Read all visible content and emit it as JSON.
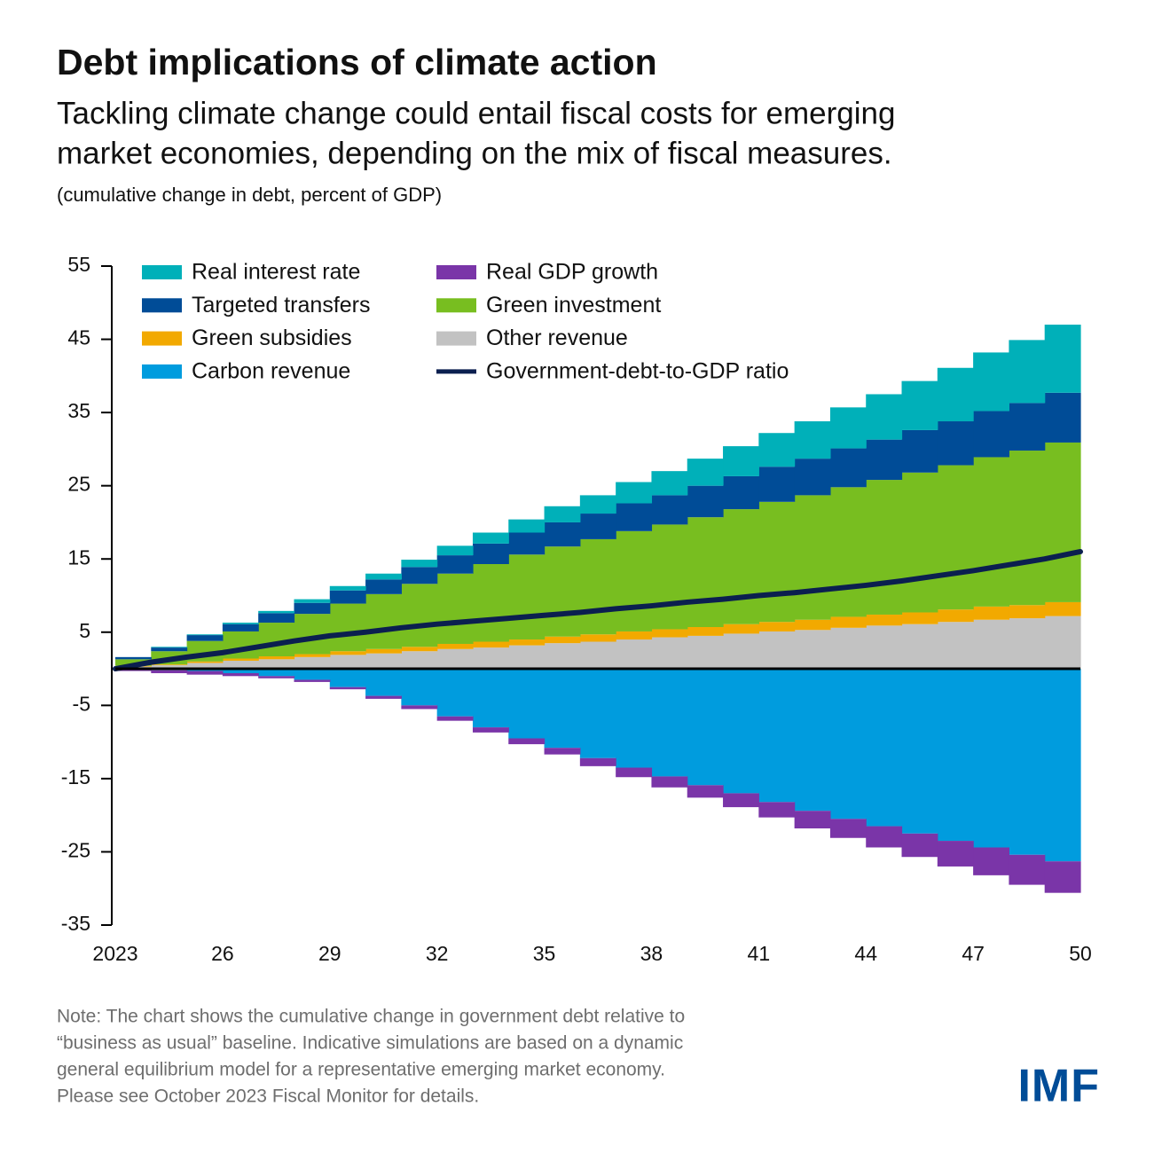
{
  "chart_data": {
    "type": "area",
    "title": "Debt implications of climate action",
    "subtitle": [
      "Tackling climate change could entail fiscal costs for emerging",
      "market economies, depending on the mix of fiscal measures."
    ],
    "unit_note": "(cumulative change in debt, percent of GDP)",
    "x": [
      2023,
      2024,
      2025,
      2026,
      2027,
      2028,
      2029,
      2030,
      2031,
      2032,
      2033,
      2034,
      2035,
      2036,
      2037,
      2038,
      2039,
      2040,
      2041,
      2042,
      2043,
      2044,
      2045,
      2046,
      2047,
      2048,
      2049,
      2050
    ],
    "xlim": [
      2023,
      2050
    ],
    "xticks": [
      2023,
      {
        "value": 2026,
        "label": "26"
      },
      {
        "value": 2029,
        "label": "29"
      },
      {
        "value": 2032,
        "label": "32"
      },
      {
        "value": 2035,
        "label": "35"
      },
      {
        "value": 2038,
        "label": "38"
      },
      {
        "value": 2041,
        "label": "41"
      },
      {
        "value": 2044,
        "label": "44"
      },
      {
        "value": 2047,
        "label": "47"
      },
      {
        "value": 2050,
        "label": "50"
      }
    ],
    "ylim": [
      -35,
      55
    ],
    "yticks": [
      55,
      45,
      35,
      25,
      15,
      5,
      -5,
      -15,
      -25,
      -35
    ],
    "series": [
      {
        "name": "Other revenue",
        "color": "#c2c2c2",
        "values": [
          0,
          0.3,
          0.5,
          0.8,
          1.1,
          1.3,
          1.6,
          1.9,
          2.1,
          2.4,
          2.7,
          2.9,
          3.2,
          3.5,
          3.7,
          4.0,
          4.3,
          4.5,
          4.8,
          5.1,
          5.3,
          5.6,
          5.9,
          6.1,
          6.4,
          6.7,
          6.9,
          7.2
        ]
      },
      {
        "name": "Green subsidies",
        "color": "#f2a900",
        "values": [
          0,
          0.1,
          0.1,
          0.2,
          0.3,
          0.4,
          0.4,
          0.5,
          0.6,
          0.6,
          0.7,
          0.8,
          0.8,
          0.9,
          1.0,
          1.1,
          1.1,
          1.2,
          1.3,
          1.3,
          1.4,
          1.5,
          1.5,
          1.6,
          1.7,
          1.8,
          1.8,
          1.9
        ]
      },
      {
        "name": "Green investment",
        "color": "#78be20",
        "values": [
          0,
          0.9,
          1.8,
          2.8,
          3.7,
          4.6,
          5.5,
          6.5,
          7.5,
          8.6,
          9.6,
          10.6,
          11.6,
          12.3,
          13.0,
          13.7,
          14.3,
          15.0,
          15.7,
          16.4,
          17.0,
          17.7,
          18.4,
          19.1,
          19.7,
          20.4,
          21.1,
          21.8
        ]
      },
      {
        "name": "Targeted transfers",
        "color": "#004c97",
        "values": [
          0,
          0.3,
          0.5,
          0.8,
          1.0,
          1.3,
          1.5,
          1.8,
          2.0,
          2.3,
          2.5,
          2.8,
          3.0,
          3.3,
          3.5,
          3.8,
          4.0,
          4.3,
          4.5,
          4.8,
          5.0,
          5.3,
          5.5,
          5.8,
          6.0,
          6.3,
          6.5,
          6.8
        ]
      },
      {
        "name": "Real interest rate",
        "color": "#00b0b9",
        "values": [
          0,
          0,
          0.1,
          0.1,
          0.2,
          0.3,
          0.5,
          0.6,
          0.8,
          1.0,
          1.3,
          1.5,
          1.8,
          2.2,
          2.5,
          2.9,
          3.3,
          3.7,
          4.1,
          4.6,
          5.1,
          5.6,
          6.2,
          6.7,
          7.3,
          8.0,
          8.6,
          9.3
        ]
      },
      {
        "name": "Carbon revenue",
        "color": "#009cde",
        "values": [
          0,
          -0.1,
          -0.2,
          -0.3,
          -0.6,
          -1.0,
          -1.5,
          -2.5,
          -3.7,
          -5.0,
          -6.5,
          -8.0,
          -9.5,
          -10.8,
          -12.2,
          -13.5,
          -14.7,
          -15.9,
          -17.0,
          -18.2,
          -19.4,
          -20.5,
          -21.5,
          -22.5,
          -23.5,
          -24.4,
          -25.4,
          -26.3
        ]
      },
      {
        "name": "Real GDP growth",
        "color": "#7a35a8",
        "values": [
          0,
          -0.2,
          -0.4,
          -0.5,
          -0.4,
          -0.3,
          -0.3,
          -0.3,
          -0.4,
          -0.5,
          -0.6,
          -0.7,
          -0.8,
          -0.9,
          -1.1,
          -1.3,
          -1.5,
          -1.7,
          -1.9,
          -2.1,
          -2.4,
          -2.6,
          -2.9,
          -3.2,
          -3.5,
          -3.8,
          -4.1,
          -4.3
        ]
      },
      {
        "name": "Government-debt-to-GDP ratio",
        "color": "#0b1f4f",
        "type": "line",
        "values": [
          0,
          0.9,
          1.6,
          2.2,
          3.0,
          3.8,
          4.5,
          5.0,
          5.6,
          6.1,
          6.5,
          6.9,
          7.3,
          7.7,
          8.2,
          8.6,
          9.1,
          9.5,
          10.0,
          10.4,
          10.9,
          11.4,
          12.0,
          12.7,
          13.4,
          14.2,
          15.0,
          16.0
        ]
      }
    ],
    "note": [
      "Note: The chart shows the cumulative change in government debt relative to",
      "“business as usual” baseline. Indicative simulations are based on a dynamic",
      "general equilibrium model for a representative emerging market economy.",
      "Please see October 2023 Fiscal Monitor for details."
    ],
    "logo": "IMF"
  }
}
